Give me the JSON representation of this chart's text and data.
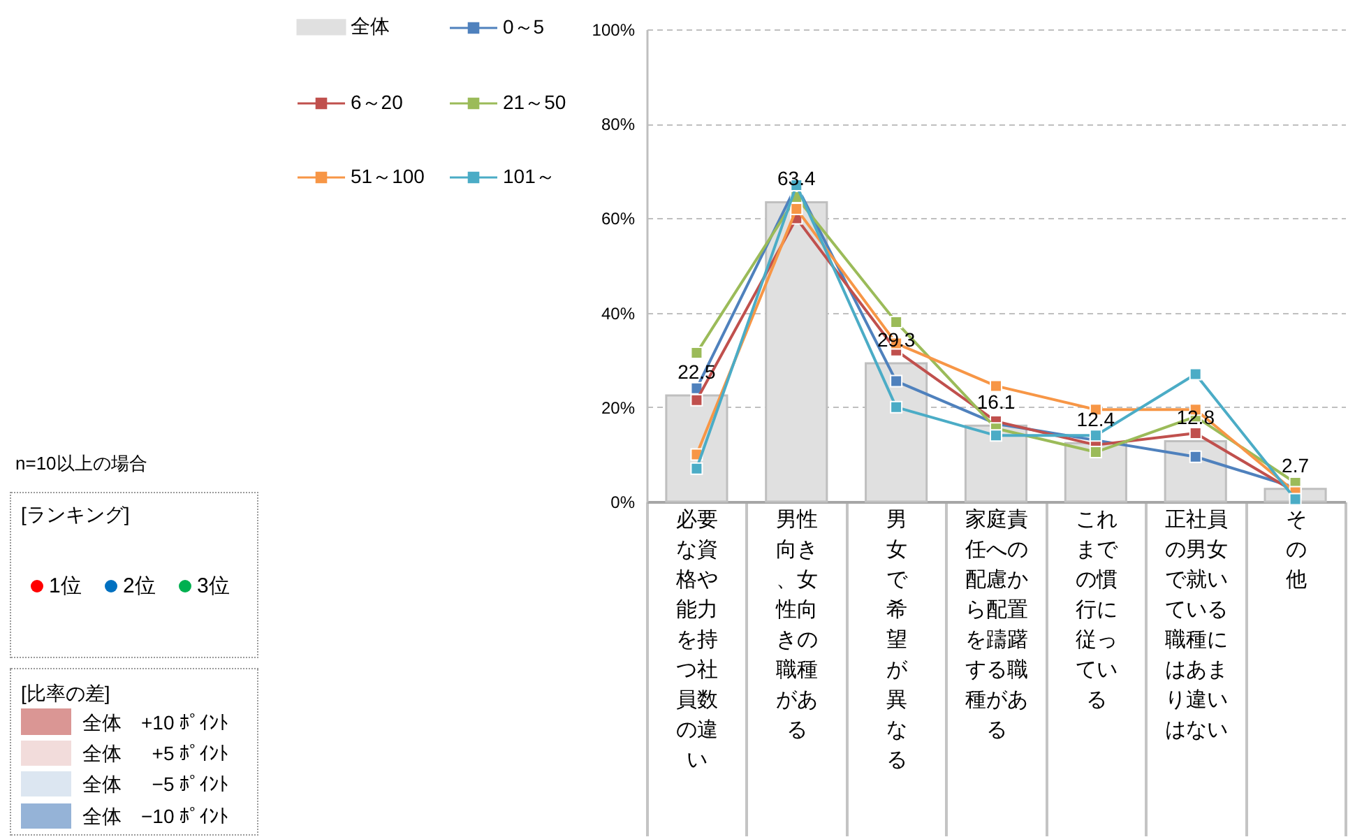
{
  "chart_data": {
    "type": "bar",
    "categories": [
      "必要な資格や能力を持つ社員数の違い",
      "男性向き、女性向きの職種がある",
      "男女で希望が異なる",
      "家庭責任への配慮から配置を躊躇する職種がある",
      "これまでの慣行に従っている",
      "正社員の男女で就いている職種にはあまり違いはない",
      "その他"
    ],
    "series": [
      {
        "name": "全体",
        "type": "bar",
        "color": "#e0e0e0",
        "values": [
          22.5,
          63.4,
          29.3,
          16.1,
          12.4,
          12.8,
          2.7
        ],
        "value_labels": [
          "22.5",
          "63.4",
          "29.3",
          "16.1",
          "12.4",
          "12.8",
          "2.7"
        ]
      },
      {
        "name": "0～5",
        "type": "line",
        "color": "#4f81bd",
        "values": [
          24,
          67,
          25.5,
          16.5,
          13,
          9.5,
          3
        ]
      },
      {
        "name": "6～20",
        "type": "line",
        "color": "#c0504d",
        "values": [
          21.5,
          60,
          32,
          17,
          12,
          14.5,
          2
        ]
      },
      {
        "name": "21～50",
        "type": "line",
        "color": "#9bbb59",
        "values": [
          31.5,
          64.5,
          38,
          15.5,
          10.5,
          18,
          4
        ]
      },
      {
        "name": "51～100",
        "type": "line",
        "color": "#f79646",
        "values": [
          10,
          62,
          33.5,
          24.5,
          19.5,
          19.5,
          2
        ]
      },
      {
        "name": "101～",
        "type": "line",
        "color": "#4bacc6",
        "values": [
          7,
          67,
          20,
          14,
          14,
          27,
          0.5
        ]
      }
    ],
    "ylim": [
      0,
      100
    ],
    "yticks": [
      {
        "value": 0,
        "label": "0%"
      },
      {
        "value": 20,
        "label": "20%"
      },
      {
        "value": 40,
        "label": "40%"
      },
      {
        "value": 60,
        "label": "60%"
      },
      {
        "value": 80,
        "label": "80%"
      },
      {
        "value": 100,
        "label": "100%"
      }
    ],
    "grid": "y",
    "legend": "top left",
    "marker": "square",
    "annotations": [
      "n=10以上の場合",
      "[ランキング]",
      "1位",
      "2位",
      "3位",
      "[比率の差]",
      "全体　+10 ﾎﾟｲﾝﾄ",
      "全体　  +5 ﾎﾟｲﾝﾄ",
      "全体　  −5 ﾎﾟｲﾝﾄ",
      "全体　−10 ﾎﾟｲﾝﾄ"
    ]
  }
}
